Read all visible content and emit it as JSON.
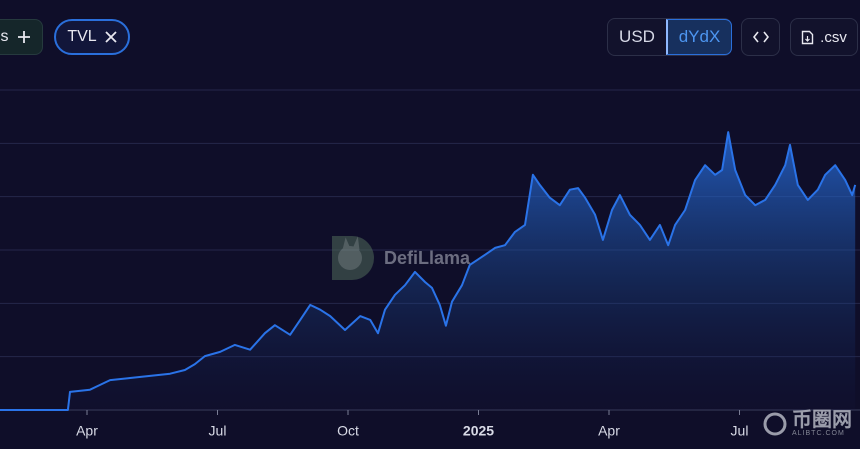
{
  "toolbar": {
    "partial_chip": "s",
    "metric_chip": "TVL",
    "denominations": [
      "USD",
      "dYdX"
    ],
    "csv_button": ".csv"
  },
  "watermark": "DefiLlama",
  "site_mark": {
    "name": "币圈网",
    "url": "ALIBTC.COM"
  },
  "chart_data": {
    "type": "area",
    "color": "#2a73e8",
    "grid": true,
    "x": [
      1.0,
      2.56,
      2.61,
      3.07,
      3.3,
      3.53,
      3.99,
      4.45,
      4.91,
      5.25,
      5.48,
      5.71,
      6.06,
      6.4,
      6.75,
      7.09,
      7.32,
      7.67,
      7.9,
      8.13,
      8.36,
      8.59,
      8.93,
      9.28,
      9.51,
      9.69,
      9.85,
      10.08,
      10.31,
      10.54,
      10.77,
      10.93,
      11.11,
      11.25,
      11.39,
      11.62,
      11.8,
      12.15,
      12.38,
      12.61,
      12.84,
      13.07,
      13.25,
      13.41,
      13.64,
      13.87,
      14.1,
      14.29,
      14.45,
      14.68,
      14.86,
      15.07,
      15.25,
      15.48,
      15.71,
      15.94,
      16.17,
      16.36,
      16.52,
      16.75,
      16.98,
      17.21,
      17.44,
      17.6,
      17.74,
      17.9,
      18.13,
      18.36,
      18.59,
      18.82,
      19.05,
      19.16,
      19.34,
      19.57,
      19.8,
      19.97,
      20.2,
      20.43,
      20.59,
      20.66
    ],
    "values": [
      0,
      0,
      0.34,
      0.38,
      0.47,
      0.56,
      0.6,
      0.64,
      0.68,
      0.75,
      0.86,
      1.01,
      1.09,
      1.22,
      1.13,
      1.44,
      1.59,
      1.41,
      1.69,
      1.97,
      1.88,
      1.76,
      1.5,
      1.76,
      1.69,
      1.44,
      1.88,
      2.16,
      2.34,
      2.59,
      2.4,
      2.29,
      1.97,
      1.58,
      2.03,
      2.34,
      2.72,
      2.91,
      3.04,
      3.09,
      3.34,
      3.47,
      4.41,
      4.22,
      3.98,
      3.84,
      4.13,
      4.16,
      3.98,
      3.66,
      3.19,
      3.75,
      4.03,
      3.66,
      3.47,
      3.19,
      3.47,
      3.09,
      3.47,
      3.75,
      4.31,
      4.59,
      4.41,
      4.5,
      5.21,
      4.5,
      4.03,
      3.84,
      3.94,
      4.22,
      4.59,
      4.97,
      4.22,
      3.94,
      4.13,
      4.41,
      4.59,
      4.31,
      4.03,
      4.22
    ],
    "xlim": [
      1,
      20.77
    ],
    "xticks": [
      {
        "value": 3,
        "label": "Apr"
      },
      {
        "value": 6,
        "label": "Jul"
      },
      {
        "value": 9,
        "label": "Oct"
      },
      {
        "value": 12,
        "label": "2025"
      },
      {
        "value": 15,
        "label": "Apr"
      },
      {
        "value": 18,
        "label": "Jul"
      }
    ],
    "ylim": [
      0,
      6
    ],
    "yticks": [
      0,
      1,
      2,
      3,
      4,
      5,
      6
    ]
  }
}
